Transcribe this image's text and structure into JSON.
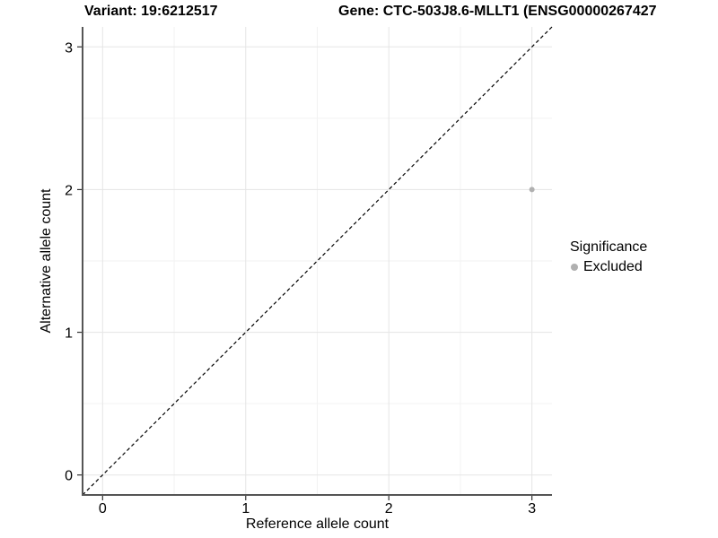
{
  "chart_data": {
    "type": "scatter",
    "title_variant": "Variant: 19:6212517",
    "title_gene": "Gene: CTC-503J8.6-MLLT1 (ENSG00000267427",
    "xlabel": "Reference allele count",
    "ylabel": "Alternative allele count",
    "xlim": [
      -0.14,
      3.14
    ],
    "ylim": [
      -0.14,
      3.14
    ],
    "x_ticks": [
      0,
      1,
      2,
      3
    ],
    "y_ticks": [
      0,
      1,
      2,
      3
    ],
    "grid": true,
    "points": [
      {
        "x": 3,
        "y": 2,
        "significance": "Excluded"
      }
    ],
    "reference_line": {
      "style": "dashed",
      "slope": 1,
      "intercept": 0,
      "color": "#000000"
    },
    "legend": {
      "title": "Significance",
      "position": "right",
      "entries": [
        {
          "label": "Excluded",
          "color": "#b0b0b0"
        }
      ]
    },
    "colors": {
      "point": "#b0b0b0",
      "grid_major": "#e5e5e5",
      "grid_minor": "#f2f2f2",
      "axis_line": "#555555",
      "tick_mark": "#333333",
      "text": "#000000",
      "background": "#ffffff"
    }
  }
}
